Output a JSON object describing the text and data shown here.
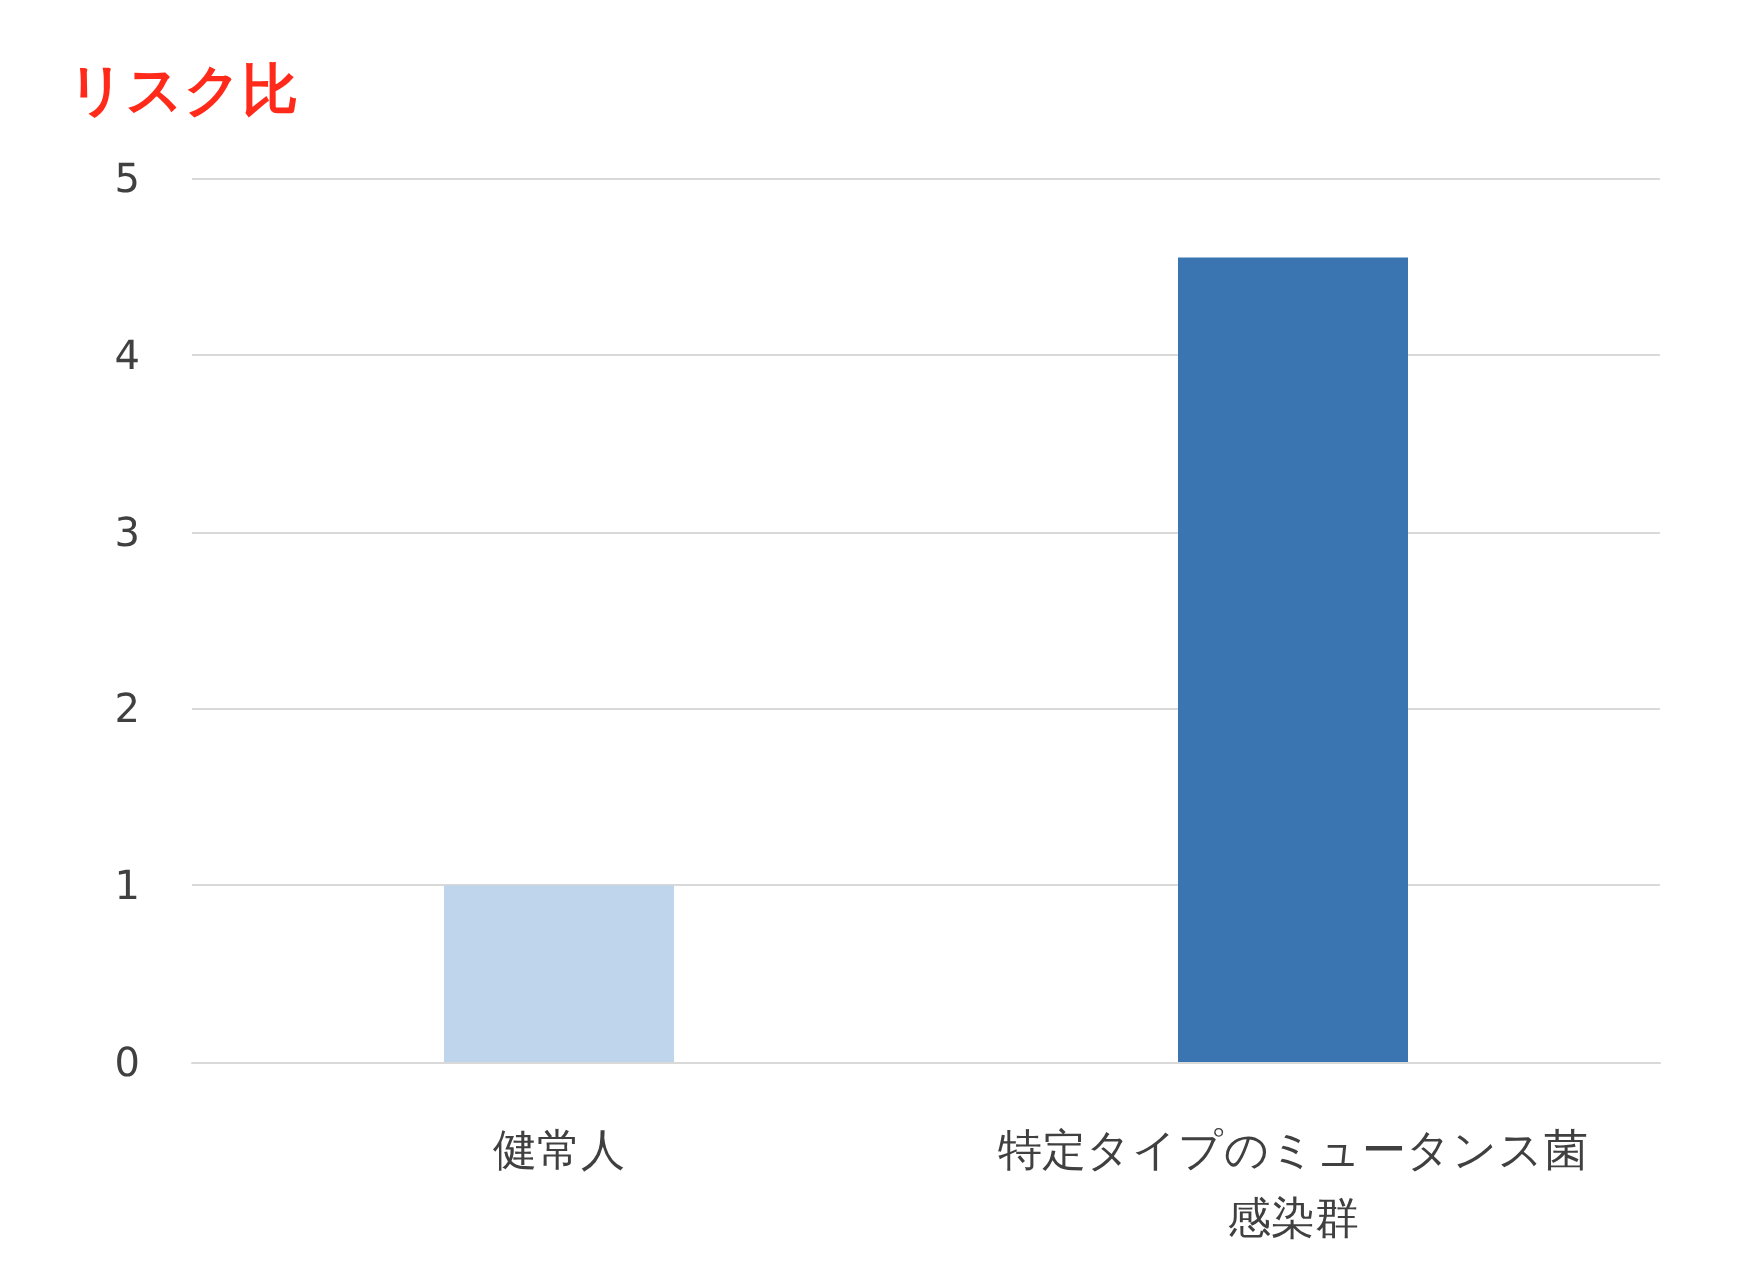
{
  "chart_data": {
    "type": "bar",
    "ylabel": "リスク比",
    "categories": [
      "健常人",
      "特定タイプのミュータンス菌感染群"
    ],
    "values": [
      1,
      4.55
    ],
    "colors": [
      "#bed5eb",
      "#3a74b1"
    ],
    "ylim": [
      0,
      5
    ],
    "yticks": [
      0,
      1,
      2,
      3,
      4,
      5
    ],
    "grid": "y"
  }
}
